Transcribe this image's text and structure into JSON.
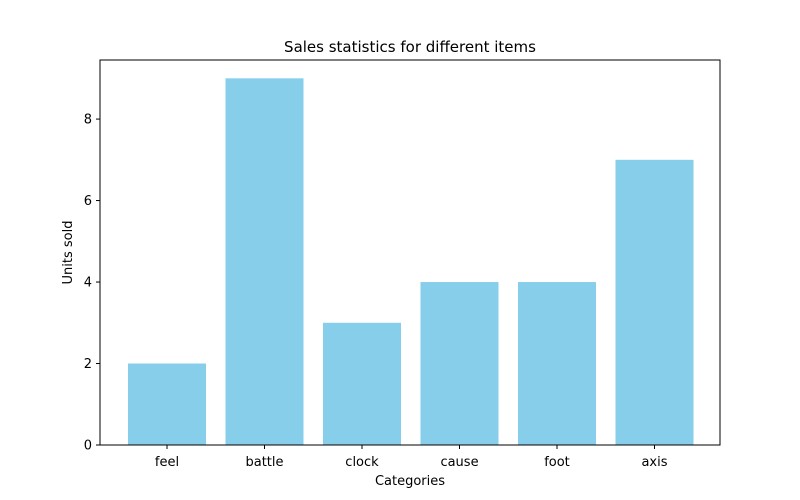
{
  "chart_data": {
    "type": "bar",
    "title": "Sales statistics for different items",
    "xlabel": "Categories",
    "ylabel": "Units sold",
    "categories": [
      "feel",
      "battle",
      "clock",
      "cause",
      "foot",
      "axis"
    ],
    "values": [
      2,
      9,
      3,
      4,
      4,
      7
    ],
    "yticks": [
      0,
      2,
      4,
      6,
      8
    ],
    "ylim": [
      0,
      9.45
    ],
    "bar_color": "#87ceeb",
    "grid": false,
    "legend": "none"
  }
}
